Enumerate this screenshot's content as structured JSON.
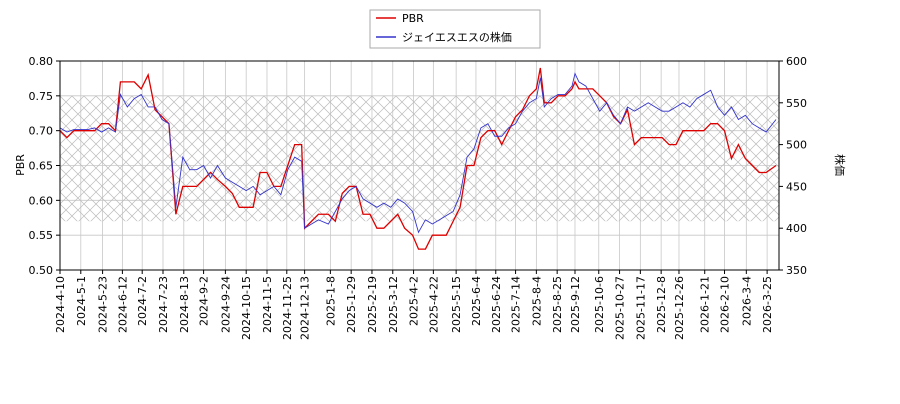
{
  "chart_data": {
    "type": "line",
    "y_label": "PBR",
    "y2_label": "株価",
    "x": [
      "2024-4-10",
      "2024-4-17",
      "2024-4-24",
      "2024-5-1",
      "2024-5-8",
      "2024-5-15",
      "2024-5-22",
      "2024-5-29",
      "2024-6-5",
      "2024-6-10",
      "2024-6-17",
      "2024-6-24",
      "2024-7-1",
      "2024-7-8",
      "2024-7-15",
      "2024-7-22",
      "2024-7-29",
      "2024-8-5",
      "2024-8-12",
      "2024-8-19",
      "2024-8-26",
      "2024-9-2",
      "2024-9-9",
      "2024-9-16",
      "2024-9-24",
      "2024-10-1",
      "2024-10-8",
      "2024-10-15",
      "2024-10-22",
      "2024-10-29",
      "2024-11-5",
      "2024-11-12",
      "2024-11-19",
      "2024-11-26",
      "2024-12-3",
      "2024-12-10",
      "2024-12-13",
      "2024-12-20",
      "2024-12-27",
      "2025-1-6",
      "2025-1-13",
      "2025-1-20",
      "2025-1-27",
      "2025-2-3",
      "2025-2-10",
      "2025-2-17",
      "2025-2-24",
      "2025-3-3",
      "2025-3-10",
      "2025-3-17",
      "2025-3-24",
      "2025-4-1",
      "2025-4-7",
      "2025-4-14",
      "2025-4-21",
      "2025-4-28",
      "2025-5-5",
      "2025-5-12",
      "2025-5-19",
      "2025-5-26",
      "2025-6-2",
      "2025-6-9",
      "2025-6-16",
      "2025-6-23",
      "2025-6-30",
      "2025-7-7",
      "2025-7-14",
      "2025-7-21",
      "2025-7-28",
      "2025-8-4",
      "2025-8-8",
      "2025-8-12",
      "2025-8-19",
      "2025-8-26",
      "2025-9-2",
      "2025-9-9",
      "2025-9-12",
      "2025-9-16",
      "2025-9-23",
      "2025-9-30",
      "2025-10-7",
      "2025-10-14",
      "2025-10-21",
      "2025-10-28",
      "2025-11-4",
      "2025-11-11",
      "2025-11-18",
      "2025-11-25",
      "2025-12-2",
      "2025-12-9",
      "2025-12-16",
      "2025-12-23",
      "2025-12-30",
      "2026-1-6",
      "2026-1-13",
      "2026-1-20",
      "2026-1-27",
      "2026-2-3",
      "2026-2-10",
      "2026-2-17",
      "2026-2-24",
      "2026-3-3",
      "2026-3-10",
      "2026-3-17",
      "2026-3-24",
      "2026-4-3"
    ],
    "series": [
      {
        "name": "PBR",
        "color": "#dd0000",
        "axis": "y",
        "values": [
          0.7,
          0.69,
          0.7,
          0.7,
          0.7,
          0.7,
          0.71,
          0.71,
          0.7,
          0.77,
          0.77,
          0.77,
          0.76,
          0.78,
          0.73,
          0.72,
          0.71,
          0.58,
          0.62,
          0.62,
          0.62,
          0.63,
          0.64,
          0.63,
          0.62,
          0.61,
          0.59,
          0.59,
          0.59,
          0.64,
          0.64,
          0.62,
          0.62,
          0.65,
          0.68,
          0.68,
          0.56,
          0.57,
          0.58,
          0.58,
          0.57,
          0.61,
          0.62,
          0.62,
          0.58,
          0.58,
          0.56,
          0.56,
          0.57,
          0.58,
          0.56,
          0.55,
          0.53,
          0.53,
          0.55,
          0.55,
          0.55,
          0.57,
          0.59,
          0.65,
          0.65,
          0.69,
          0.7,
          0.7,
          0.68,
          0.7,
          0.72,
          0.73,
          0.75,
          0.76,
          0.79,
          0.74,
          0.74,
          0.75,
          0.75,
          0.76,
          0.77,
          0.76,
          0.76,
          0.76,
          0.75,
          0.74,
          0.72,
          0.71,
          0.73,
          0.68,
          0.69,
          0.69,
          0.69,
          0.69,
          0.68,
          0.68,
          0.7,
          0.7,
          0.7,
          0.7,
          0.71,
          0.71,
          0.7,
          0.66,
          0.68,
          0.66,
          0.65,
          0.64,
          0.64,
          0.65
        ]
      },
      {
        "name": "ジェイエスエスの株価",
        "color": "#3333cc",
        "axis": "y2",
        "values": [
          520,
          515,
          518,
          518,
          518,
          520,
          515,
          520,
          515,
          560,
          545,
          555,
          560,
          545,
          545,
          530,
          525,
          425,
          485,
          470,
          470,
          475,
          460,
          475,
          460,
          455,
          450,
          445,
          450,
          440,
          445,
          450,
          440,
          470,
          485,
          480,
          400,
          405,
          410,
          405,
          420,
          435,
          445,
          450,
          435,
          430,
          425,
          430,
          425,
          435,
          430,
          420,
          395,
          410,
          405,
          410,
          415,
          420,
          440,
          485,
          495,
          520,
          525,
          510,
          510,
          520,
          525,
          540,
          550,
          555,
          580,
          545,
          555,
          560,
          560,
          570,
          585,
          575,
          570,
          555,
          540,
          550,
          535,
          525,
          545,
          540,
          545,
          550,
          545,
          540,
          540,
          545,
          550,
          545,
          555,
          560,
          565,
          545,
          535,
          545,
          530,
          535,
          525,
          520,
          515,
          530
        ]
      }
    ],
    "xlim": [
      "2024-4-10",
      "2026-4-6"
    ],
    "xticks": [
      "2024-4-10",
      "2024-5-1",
      "2024-5-23",
      "2024-6-12",
      "2024-7-2",
      "2024-7-23",
      "2024-8-13",
      "2024-9-2",
      "2024-9-24",
      "2024-10-15",
      "2024-11-5",
      "2024-11-25",
      "2024-12-13",
      "2025-1-8",
      "2025-1-29",
      "2025-2-19",
      "2025-3-12",
      "2025-4-2",
      "2025-4-22",
      "2025-5-15",
      "2025-6-4",
      "2025-6-24",
      "2025-7-14",
      "2025-8-4",
      "2025-8-25",
      "2025-9-12",
      "2025-10-6",
      "2025-10-27",
      "2025-11-17",
      "2025-12-8",
      "2025-12-26",
      "2026-1-21",
      "2026-2-10",
      "2026-3-4",
      "2026-3-25"
    ],
    "ylim": [
      0.5,
      0.8
    ],
    "yticks": [
      {
        "value": 0.5,
        "label": "0.50"
      },
      {
        "value": 0.55,
        "label": "0.55"
      },
      {
        "value": 0.6,
        "label": "0.60"
      },
      {
        "value": 0.65,
        "label": "0.65"
      },
      {
        "value": 0.7,
        "label": "0.70"
      },
      {
        "value": 0.75,
        "label": "0.75"
      },
      {
        "value": 0.8,
        "label": "0.80"
      }
    ],
    "y2lim": [
      350,
      600
    ],
    "y2ticks": [
      350,
      400,
      450,
      500,
      550,
      600
    ],
    "shaded_range": [
      0.57,
      0.75
    ],
    "grid": true
  }
}
